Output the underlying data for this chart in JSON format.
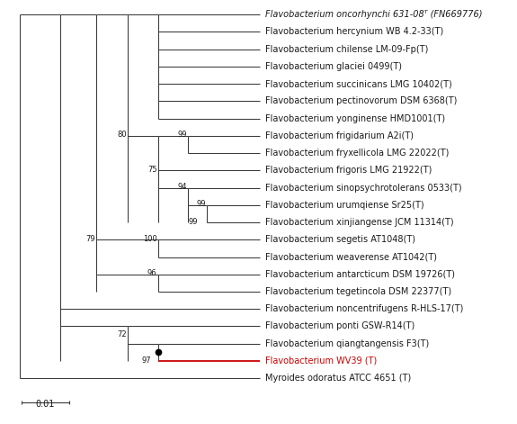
{
  "taxa": [
    {
      "name": "Flavobacterium oncorhynchi 631-08ᵀ (FN669776)",
      "y": 1,
      "italic": true
    },
    {
      "name": "Flavobacterium hercynium WB 4.2-33(T)",
      "y": 2,
      "italic": false
    },
    {
      "name": "Flavobacterium chilense LM-09-Fp(T)",
      "y": 3,
      "italic": false
    },
    {
      "name": "Flavobacterium glaciei 0499(T)",
      "y": 4,
      "italic": false
    },
    {
      "name": "Flavobacterium succinicans LMG 10402(T)",
      "y": 5,
      "italic": false
    },
    {
      "name": "Flavobacterium pectinovorum DSM 6368(T)",
      "y": 6,
      "italic": false
    },
    {
      "name": "Flavobacterium yonginense HMD1001(T)",
      "y": 7,
      "italic": false
    },
    {
      "name": "Flavobacterium frigidarium A2i(T)",
      "y": 8,
      "italic": false
    },
    {
      "name": "Flavobacterium fryxellicola LMG 22022(T)",
      "y": 9,
      "italic": false
    },
    {
      "name": "Flavobacterium frigoris LMG 21922(T)",
      "y": 10,
      "italic": false
    },
    {
      "name": "Flavobacterium sinopsychrotolerans 0533(T)",
      "y": 11,
      "italic": false
    },
    {
      "name": "Flavobacterium urumqiense Sr25(T)",
      "y": 12,
      "italic": false
    },
    {
      "name": "Flavobacterium xinjiangense JCM 11314(T)",
      "y": 13,
      "italic": false
    },
    {
      "name": "Flavobacterium segetis AT1048(T)",
      "y": 14,
      "italic": false
    },
    {
      "name": "Flavobacterium weaverense AT1042(T)",
      "y": 15,
      "italic": false
    },
    {
      "name": "Flavobacterium antarcticum DSM 19726(T)",
      "y": 16,
      "italic": false
    },
    {
      "name": "Flavobacterium tegetincola DSM 22377(T)",
      "y": 17,
      "italic": false
    },
    {
      "name": "Flavobacterium noncentrifugens R-HLS-17(T)",
      "y": 18,
      "italic": false
    },
    {
      "name": "Flavobacterium ponti GSW-R14(T)",
      "y": 19,
      "italic": false
    },
    {
      "name": "Flavobacterium qiangtangensis F3(T)",
      "y": 20,
      "italic": false
    },
    {
      "name": "Flavobacterium WV39 (T)",
      "y": 21,
      "italic": false,
      "highlight": true
    },
    {
      "name": "Myroides odoratus ATCC 4651 (T)",
      "y": 22,
      "italic": false
    }
  ],
  "bg_color": "#ffffff",
  "line_color": "#3a3a3a",
  "highlight_color": "#cc0000",
  "text_color": "#1a1a1a",
  "font_size": 7.0,
  "fig_width": 5.75,
  "fig_height": 4.71
}
